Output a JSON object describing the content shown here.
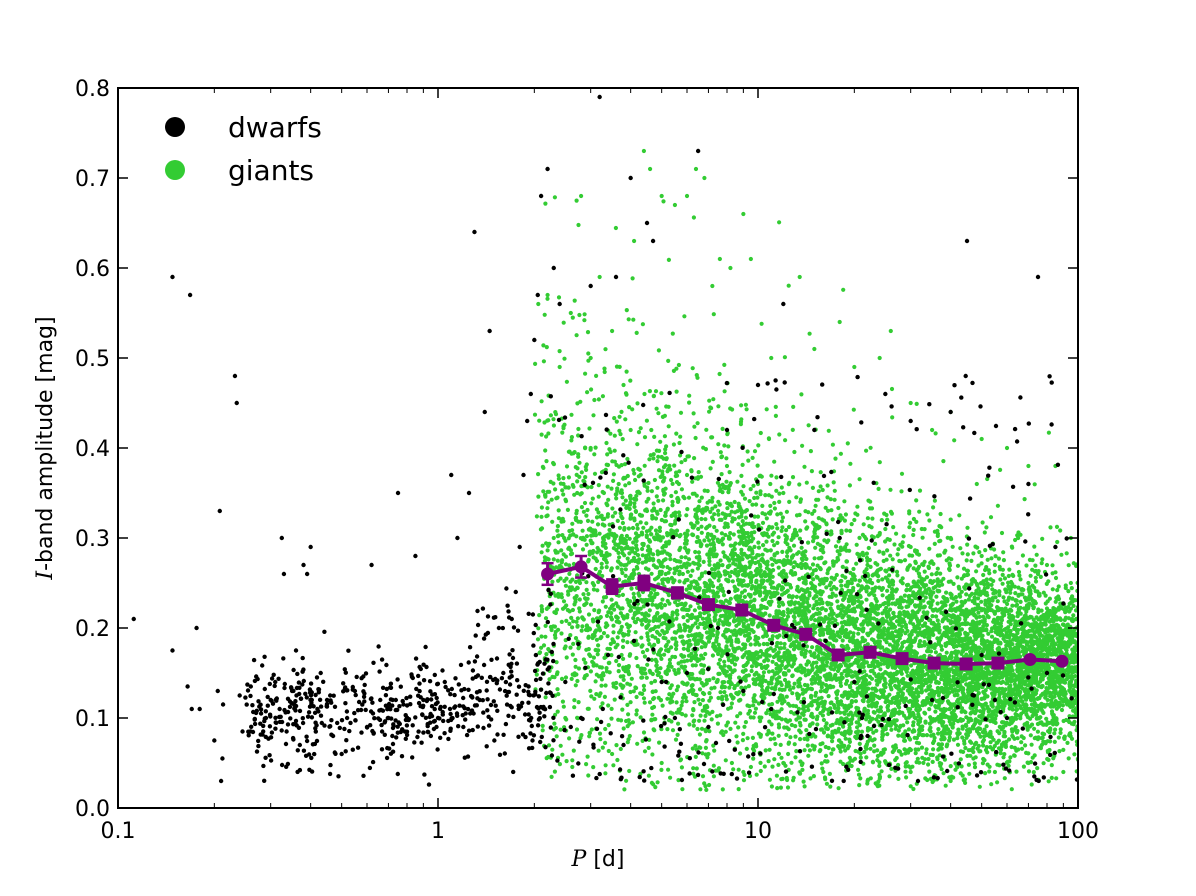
{
  "chart_data": {
    "type": "scatter",
    "x_scale": "log",
    "xlim": [
      0.1,
      100
    ],
    "ylim": [
      0.0,
      0.8
    ],
    "x_ticks": [
      0.1,
      1,
      10,
      100
    ],
    "x_tick_labels": [
      "0.1",
      "1",
      "10",
      "100"
    ],
    "y_ticks": [
      0.0,
      0.1,
      0.2,
      0.3,
      0.4,
      0.5,
      0.6,
      0.7,
      0.8
    ],
    "y_tick_labels": [
      "0.0",
      "0.1",
      "0.2",
      "0.3",
      "0.4",
      "0.5",
      "0.6",
      "0.7",
      "0.8"
    ],
    "xlabel_var": "P",
    "xlabel_unit": " [d]",
    "ylabel_var": "I",
    "ylabel_text": "-band amplitude [mag]",
    "grid": false,
    "legend_position": "top-left",
    "series": [
      {
        "name": "dwarfs",
        "color": "#000000",
        "kind": "points",
        "points": [
          [
            0.112,
            0.21
          ],
          [
            0.148,
            0.59
          ],
          [
            0.148,
            0.175
          ],
          [
            0.168,
            0.57
          ],
          [
            0.165,
            0.135
          ],
          [
            0.17,
            0.11
          ],
          [
            0.176,
            0.2
          ],
          [
            0.18,
            0.11
          ],
          [
            0.2,
            0.075
          ],
          [
            0.205,
            0.13
          ],
          [
            0.208,
            0.33
          ],
          [
            0.21,
            0.03
          ],
          [
            0.212,
            0.055
          ],
          [
            0.213,
            0.115
          ],
          [
            0.232,
            0.48
          ],
          [
            0.235,
            0.45
          ],
          [
            0.24,
            0.125
          ],
          [
            0.245,
            0.085
          ],
          [
            0.26,
            0.135
          ],
          [
            0.28,
            0.105
          ],
          [
            0.29,
            0.1
          ],
          [
            0.3,
            0.12
          ],
          [
            0.31,
            0.14
          ],
          [
            0.32,
            0.11
          ],
          [
            0.325,
            0.3
          ],
          [
            0.33,
            0.26
          ],
          [
            0.35,
            0.13
          ],
          [
            0.36,
            0.175
          ],
          [
            0.37,
            0.07
          ],
          [
            0.38,
            0.27
          ],
          [
            0.39,
            0.26
          ],
          [
            0.4,
            0.29
          ],
          [
            0.42,
            0.11
          ],
          [
            0.43,
            0.15
          ],
          [
            0.45,
            0.12
          ],
          [
            0.47,
            0.08
          ],
          [
            0.5,
            0.06
          ],
          [
            0.52,
            0.1
          ],
          [
            0.55,
            0.13
          ],
          [
            0.6,
            0.09
          ],
          [
            0.62,
            0.27
          ],
          [
            0.66,
            0.12
          ],
          [
            0.7,
            0.1
          ],
          [
            0.72,
            0.08
          ],
          [
            0.75,
            0.35
          ],
          [
            0.78,
            0.115
          ],
          [
            0.8,
            0.1
          ],
          [
            0.85,
            0.28
          ],
          [
            0.9,
            0.12
          ],
          [
            0.95,
            0.08
          ],
          [
            1.0,
            0.1
          ],
          [
            1.05,
            0.14
          ],
          [
            1.1,
            0.37
          ],
          [
            1.15,
            0.3
          ],
          [
            1.2,
            0.09
          ],
          [
            1.25,
            0.35
          ],
          [
            1.3,
            0.64
          ],
          [
            1.35,
            0.12
          ],
          [
            1.4,
            0.44
          ],
          [
            1.45,
            0.53
          ],
          [
            1.5,
            0.075
          ],
          [
            1.55,
            0.2
          ],
          [
            1.6,
            0.15
          ],
          [
            1.7,
            0.21
          ],
          [
            1.75,
            0.24
          ],
          [
            1.8,
            0.29
          ],
          [
            1.85,
            0.37
          ],
          [
            1.9,
            0.43
          ],
          [
            1.95,
            0.46
          ],
          [
            2.0,
            0.52
          ],
          [
            2.05,
            0.57
          ],
          [
            2.1,
            0.68
          ],
          [
            2.2,
            0.71
          ],
          [
            2.3,
            0.6
          ],
          [
            2.4,
            0.56
          ],
          [
            2.5,
            0.14
          ],
          [
            2.6,
            0.09
          ],
          [
            2.8,
            0.1
          ],
          [
            3.0,
            0.58
          ],
          [
            3.2,
            0.79
          ],
          [
            3.4,
            0.17
          ],
          [
            3.6,
            0.59
          ],
          [
            3.8,
            0.07
          ],
          [
            4.0,
            0.7
          ],
          [
            4.2,
            0.23
          ],
          [
            4.5,
            0.65
          ],
          [
            4.7,
            0.63
          ],
          [
            5.0,
            0.14
          ],
          [
            5.5,
            0.1
          ],
          [
            6.0,
            0.15
          ],
          [
            6.5,
            0.73
          ],
          [
            7.0,
            0.09
          ],
          [
            7.5,
            0.2
          ],
          [
            8.0,
            0.42
          ],
          [
            9.0,
            0.13
          ],
          [
            10.0,
            0.47
          ],
          [
            11.0,
            0.11
          ],
          [
            12.0,
            0.56
          ],
          [
            13.0,
            0.2
          ],
          [
            15.0,
            0.42
          ],
          [
            18.0,
            0.3
          ],
          [
            20.0,
            0.14
          ],
          [
            22.0,
            0.08
          ],
          [
            25.0,
            0.46
          ],
          [
            28.0,
            0.17
          ],
          [
            30.0,
            0.43
          ],
          [
            35.0,
            0.12
          ],
          [
            40.0,
            0.44
          ],
          [
            45.0,
            0.63
          ],
          [
            50.0,
            0.17
          ],
          [
            55.0,
            0.12
          ],
          [
            60.0,
            0.1
          ],
          [
            70.0,
            0.36
          ],
          [
            75.0,
            0.59
          ],
          [
            80.0,
            0.15
          ],
          [
            85.0,
            0.29
          ]
        ]
      },
      {
        "name": "giants",
        "color": "#33cc33",
        "kind": "points",
        "points": [
          [
            2.2,
            0.57
          ],
          [
            2.4,
            0.49
          ],
          [
            2.6,
            0.55
          ],
          [
            2.8,
            0.68
          ],
          [
            3.0,
            0.5
          ],
          [
            3.2,
            0.59
          ],
          [
            3.5,
            0.53
          ],
          [
            3.8,
            0.47
          ],
          [
            4.1,
            0.63
          ],
          [
            4.4,
            0.73
          ],
          [
            4.6,
            0.71
          ],
          [
            5.0,
            0.68
          ],
          [
            5.5,
            0.67
          ],
          [
            6.0,
            0.68
          ],
          [
            6.4,
            0.71
          ],
          [
            6.8,
            0.7
          ],
          [
            7.2,
            0.58
          ],
          [
            7.6,
            0.61
          ],
          [
            8.2,
            0.6
          ],
          [
            9.0,
            0.66
          ],
          [
            9.5,
            0.61
          ],
          [
            11.0,
            0.5
          ],
          [
            13.5,
            0.59
          ],
          [
            15.0,
            0.51
          ],
          [
            18.0,
            0.54
          ],
          [
            20.0,
            0.49
          ],
          [
            24.0,
            0.5
          ],
          [
            26.0,
            0.53
          ],
          [
            30.0,
            0.45
          ],
          [
            35.0,
            0.42
          ],
          [
            40.0,
            0.44
          ],
          [
            50.0,
            0.41
          ],
          [
            60.0,
            0.4
          ],
          [
            70.0,
            0.38
          ],
          [
            85.0,
            0.38
          ],
          [
            95.0,
            0.3
          ],
          [
            3.0,
            0.4
          ],
          [
            4.0,
            0.42
          ],
          [
            5.0,
            0.39
          ],
          [
            6.0,
            0.37
          ],
          [
            8.0,
            0.38
          ],
          [
            10.0,
            0.36
          ],
          [
            12.0,
            0.35
          ],
          [
            15.0,
            0.33
          ],
          [
            20.0,
            0.32
          ],
          [
            25.0,
            0.31
          ],
          [
            30.0,
            0.29
          ],
          [
            40.0,
            0.3
          ],
          [
            50.0,
            0.28
          ],
          [
            65.0,
            0.3
          ],
          [
            80.0,
            0.27
          ],
          [
            2.3,
            0.3
          ],
          [
            2.7,
            0.32
          ],
          [
            3.3,
            0.35
          ],
          [
            4.5,
            0.33
          ],
          [
            6.5,
            0.31
          ],
          [
            9.0,
            0.3
          ],
          [
            14.0,
            0.28
          ],
          [
            22.0,
            0.26
          ],
          [
            35.0,
            0.25
          ],
          [
            55.0,
            0.27
          ],
          [
            75.0,
            0.26
          ],
          [
            95.0,
            0.25
          ],
          [
            2.5,
            0.1
          ],
          [
            3.5,
            0.06
          ],
          [
            5.0,
            0.05
          ],
          [
            7.0,
            0.06
          ],
          [
            9.0,
            0.04
          ],
          [
            12.0,
            0.05
          ],
          [
            16.0,
            0.04
          ],
          [
            22.0,
            0.03
          ],
          [
            30.0,
            0.04
          ],
          [
            40.0,
            0.03
          ],
          [
            55.0,
            0.04
          ],
          [
            70.0,
            0.05
          ],
          [
            90.0,
            0.04
          ]
        ]
      },
      {
        "name": "",
        "color": "#800080",
        "kind": "binned-mean",
        "points": [
          [
            2.2,
            0.26
          ],
          [
            2.8,
            0.268
          ],
          [
            3.5,
            0.246
          ],
          [
            4.4,
            0.25
          ],
          [
            5.6,
            0.239
          ],
          [
            7.0,
            0.226
          ],
          [
            8.9,
            0.22
          ],
          [
            11.2,
            0.203
          ],
          [
            14.1,
            0.193
          ],
          [
            17.8,
            0.17
          ],
          [
            22.4,
            0.173
          ],
          [
            28.2,
            0.166
          ],
          [
            35.5,
            0.161
          ],
          [
            44.7,
            0.16
          ],
          [
            56.2,
            0.161
          ],
          [
            70.8,
            0.165
          ],
          [
            89.1,
            0.163
          ]
        ],
        "errors": [
          0.012,
          0.012,
          0.008,
          0.008,
          0.006,
          0.005,
          0.005,
          0.004,
          0.004,
          0.003,
          0.003,
          0.003,
          0.003,
          0.002,
          0.002,
          0.002,
          0.002
        ]
      }
    ]
  }
}
